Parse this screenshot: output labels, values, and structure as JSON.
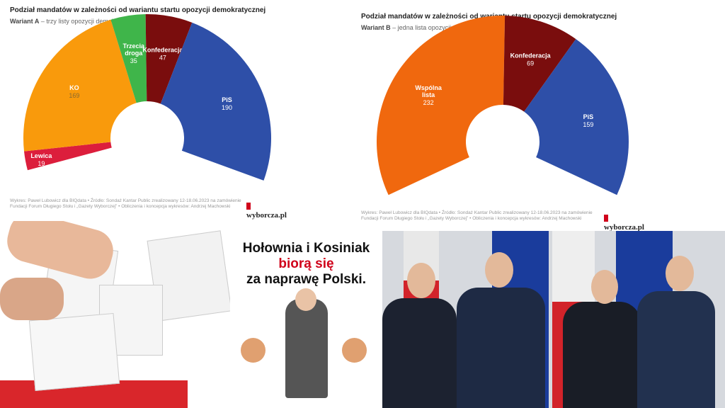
{
  "chart_data": [
    {
      "type": "pie",
      "variant": "half-donut",
      "title": "Podział mandatów w zależności od wariantu startu opozycji demokratycznej",
      "subtitle_bold": "Wariant A",
      "subtitle": " – trzy listy opozycji demokratycznej",
      "slices": [
        {
          "label": "Lewica",
          "value": 19,
          "color": "#dc1e3c"
        },
        {
          "label": "KO",
          "value": 169,
          "color": "#f99a0c"
        },
        {
          "label": "Trzecia droga",
          "value": 35,
          "color": "#3fb54a"
        },
        {
          "label": "Konfederacja",
          "value": 47,
          "color": "#7a0d0d"
        },
        {
          "label": "PiS",
          "value": 190,
          "color": "#2e4fa8"
        }
      ],
      "source": "Wykres: Paweł Lubowicz dla BIQdata • Źródło: Sondaż Kantar Public zrealizowany 12-18.06.2023 na zamówienie Fundacji Forum Długiego Stołu i „Gazety Wyborczej” • Obliczenia i koncepcja wykresów: Andrzej Machowski",
      "logo": "wyborcza.pl"
    },
    {
      "type": "pie",
      "variant": "half-donut",
      "title": "Podział mandatów w zależności od wariantu startu opozycji demokratycznej",
      "subtitle_bold": "Wariant B",
      "subtitle": " – jedna lista opozycji demokratycznej",
      "slices": [
        {
          "label": "Wspólna lista",
          "value": 232,
          "color": "#f0680e"
        },
        {
          "label": "Konfederacja",
          "value": 69,
          "color": "#7a0d0d"
        },
        {
          "label": "PiS",
          "value": 159,
          "color": "#2e4fa8"
        }
      ],
      "source": "Wykres: Paweł Lubowicz dla BIQdata • Źródło: Sondaż Kantar Public zrealizowany 12-18.06.2023 na zamówienie Fundacji Forum Długiego Stołu i „Gazety Wyborczej” • Obliczenia i koncepcja wykresów: Andrzej Machowski",
      "logo": "wyborcza.pl"
    }
  ],
  "meme": {
    "line1": "Hołownia i Kosiniak",
    "line2": "biorą się",
    "line3": "za naprawę Polski."
  }
}
